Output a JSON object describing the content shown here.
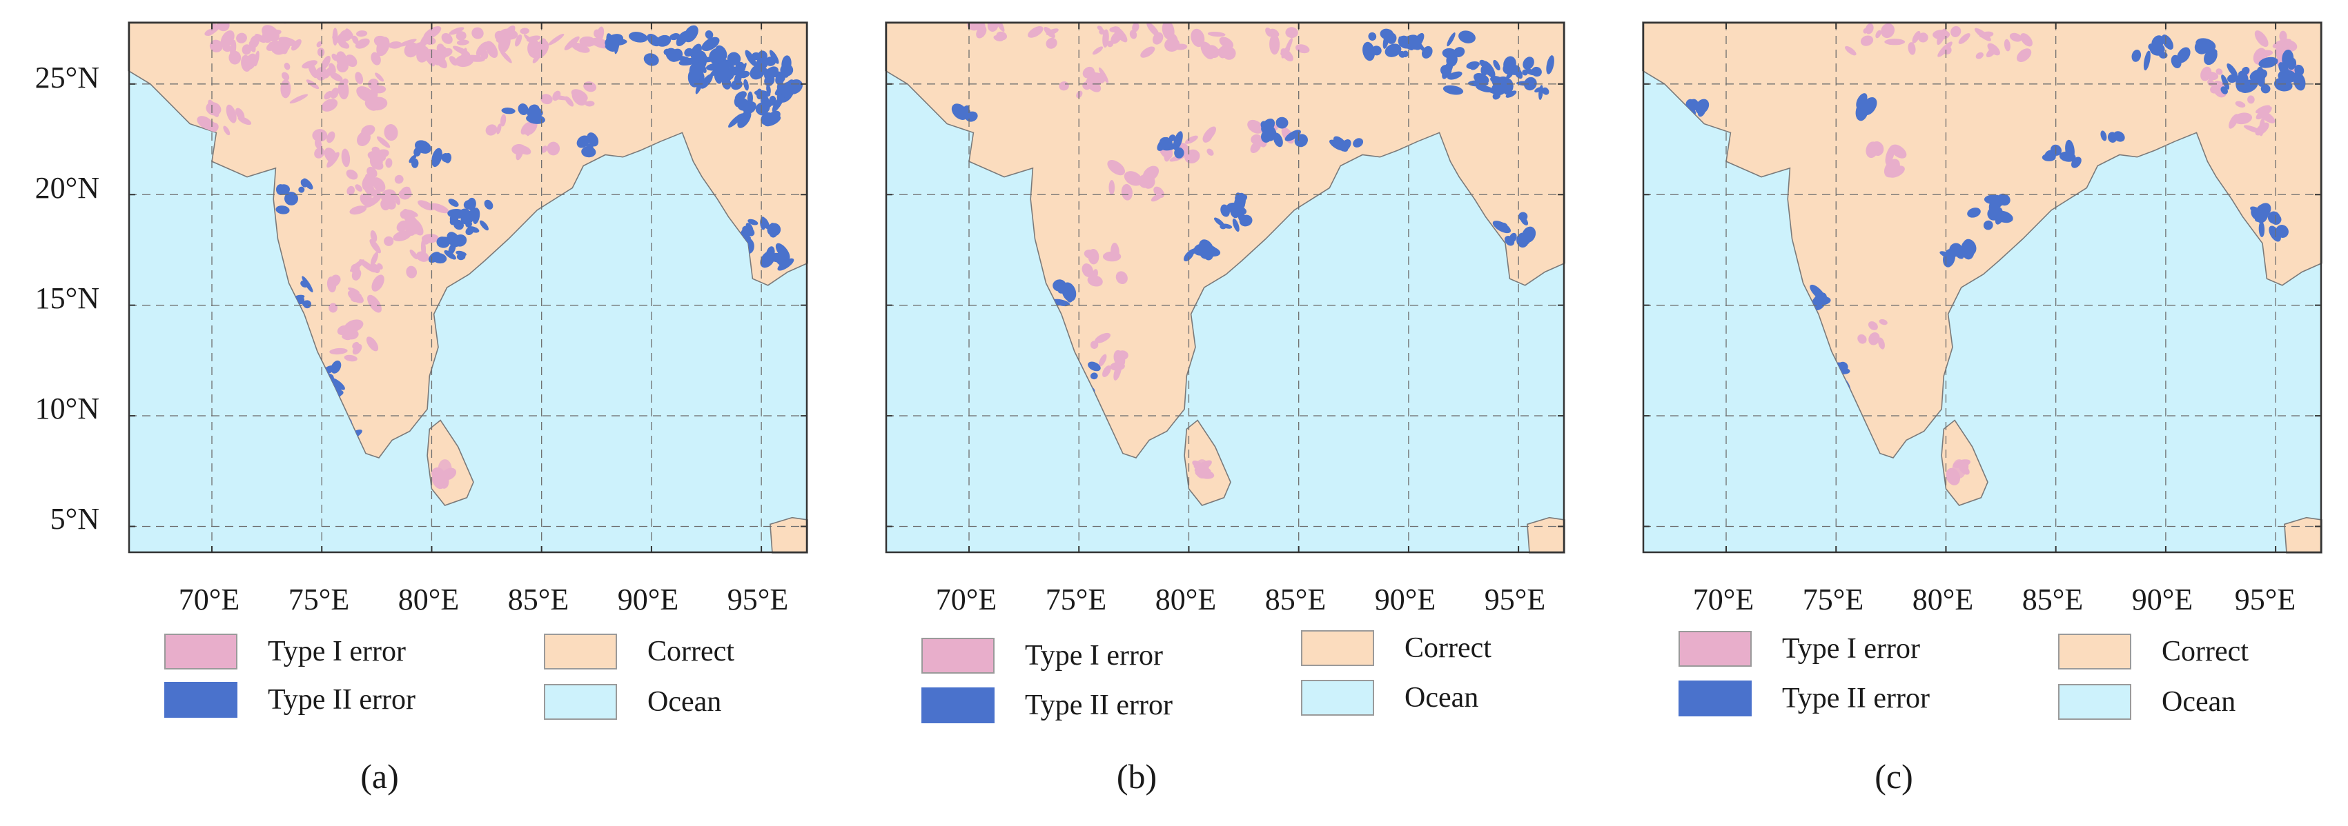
{
  "map": {
    "lat_ticks": [
      "25°N",
      "20°N",
      "15°N",
      "10°N",
      "5°N"
    ],
    "lon_ticks": [
      "70°E",
      "75°E",
      "80°E",
      "85°E",
      "90°E",
      "95°E"
    ],
    "lat_range": [
      3.8,
      27.8
    ],
    "lon_range": [
      66.2,
      97.1
    ],
    "grid": true
  },
  "legend": [
    {
      "key": "type1",
      "label": "Type I error",
      "color": "#e8aecb"
    },
    {
      "key": "type2",
      "label": "Type II error",
      "color": "#4a72cc"
    },
    {
      "key": "correct",
      "label": "Correct",
      "color": "#fbdcbe"
    },
    {
      "key": "ocean",
      "label": "Ocean",
      "color": "#cdf2fc"
    }
  ],
  "panels": [
    {
      "caption": "(a)"
    },
    {
      "caption": "(b)"
    },
    {
      "caption": "(c)"
    }
  ]
}
